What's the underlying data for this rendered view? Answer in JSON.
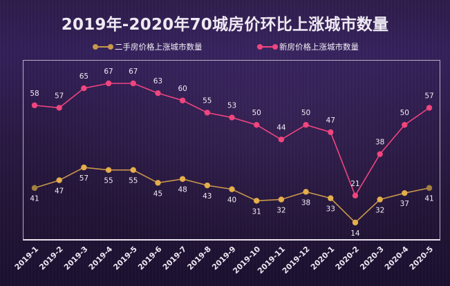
{
  "chart_data": {
    "type": "line",
    "title": "2019年-2020年70城房价环比上涨城市数量",
    "categories": [
      "2019-1",
      "2019-2",
      "2019-3",
      "2019-4",
      "2019-5",
      "2019-6",
      "2019-7",
      "2019-8",
      "2019-9",
      "2019-10",
      "2019-11",
      "2019-12",
      "2020-1",
      "2020-2",
      "2020-3",
      "2020-4",
      "2020-5"
    ],
    "series": [
      {
        "name": "二手房价格上涨城市数量",
        "color": "#c9984a",
        "values": [
          41,
          47,
          57,
          55,
          55,
          45,
          48,
          43,
          40,
          31,
          32,
          38,
          33,
          14,
          32,
          37,
          41
        ]
      },
      {
        "name": "新房价格上涨城市数量",
        "color": "#f0457e",
        "values": [
          58,
          57,
          65,
          67,
          67,
          63,
          60,
          55,
          53,
          50,
          44,
          50,
          47,
          21,
          38,
          50,
          57
        ]
      }
    ],
    "xlabel": "",
    "ylabel": "",
    "legend": "top-center",
    "grid": false
  }
}
